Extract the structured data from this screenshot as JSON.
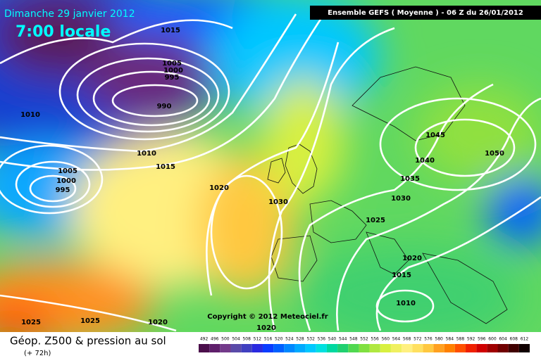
{
  "header": {
    "date": "Dimanche 29 janvier 2012",
    "time": "7:00 locale",
    "model": "Ensemble GEFS ( Moyenne )  -  06 Z du 26/01/2012"
  },
  "isobar_labels": [
    "1015",
    "1005",
    "1000",
    "995",
    "990",
    "1010",
    "1010",
    "1015",
    "1005",
    "1000",
    "995",
    "1020",
    "1030",
    "1045",
    "1040",
    "1050",
    "1035",
    "1030",
    "1025",
    "1020",
    "1015",
    "1010",
    "1025",
    "1025",
    "1020",
    "1020"
  ],
  "copyright": "Copyright © 2012 Meteociel.fr",
  "footer": {
    "title": "Géop. Z500 & pression au sol",
    "lead": "(+ 72h)"
  },
  "legend": {
    "values": [
      "492",
      "496",
      "500",
      "504",
      "508",
      "512",
      "516",
      "520",
      "524",
      "528",
      "532",
      "536",
      "540",
      "544",
      "548",
      "552",
      "556",
      "560",
      "564",
      "568",
      "572",
      "576",
      "580",
      "584",
      "588",
      "592",
      "596",
      "600",
      "604",
      "608",
      "612"
    ],
    "colors": [
      "#4b0f4b",
      "#5f1f6b",
      "#733a8a",
      "#5a4aa8",
      "#4040c0",
      "#2a2ae0",
      "#0a3cff",
      "#0060ff",
      "#0088ff",
      "#00aaff",
      "#00c8ff",
      "#00e0e0",
      "#00d8a0",
      "#20d070",
      "#50d850",
      "#80e040",
      "#b0e840",
      "#d8f040",
      "#f0f060",
      "#fff080",
      "#ffe060",
      "#ffc840",
      "#ffa020",
      "#ff8000",
      "#ff5000",
      "#f02000",
      "#d00000",
      "#a00000",
      "#700000",
      "#400000",
      "#100000"
    ]
  }
}
